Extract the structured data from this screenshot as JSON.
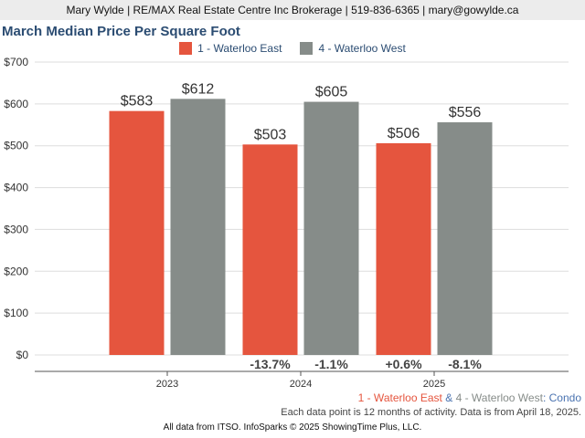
{
  "header": {
    "contact": "Mary Wylde | RE/MAX Real Estate Centre Inc Brokerage | 519-836-6365 | mary@gowylde.ca"
  },
  "colors": {
    "east": "#e5553e",
    "west": "#868c89",
    "title": "#2b4c72",
    "condo": "#4a73b0",
    "grid": "#dddddd"
  },
  "chart_data": {
    "type": "bar",
    "title": "March Median Price Per Square Foot",
    "categories": [
      "2023",
      "2024",
      "2025"
    ],
    "series": [
      {
        "name": "1 - Waterloo East",
        "values": [
          583,
          503,
          506
        ],
        "value_labels": [
          "$583",
          "$503",
          "$506"
        ],
        "change_labels": [
          "",
          "-13.7%",
          "+0.6%"
        ]
      },
      {
        "name": "4 - Waterloo West",
        "values": [
          612,
          605,
          556
        ],
        "value_labels": [
          "$612",
          "$605",
          "$556"
        ],
        "change_labels": [
          "",
          "-1.1%",
          "-8.1%"
        ]
      }
    ],
    "ylim": [
      0,
      700
    ],
    "yticks": [
      0,
      100,
      200,
      300,
      400,
      500,
      600,
      700
    ],
    "ytick_labels": [
      "$0",
      "$100",
      "$200",
      "$300",
      "$400",
      "$500",
      "$600",
      "$700"
    ],
    "grid": true,
    "legend": "top-center"
  },
  "subtitle": {
    "east": "1 - Waterloo East",
    "amp": "&",
    "west": "4 - Waterloo West",
    "colon": ":",
    "type": "Condo"
  },
  "note": "Each data point is 12 months of activity. Data is from April 18, 2025.",
  "footer": "All data from ITSO. InfoSparks © 2025 ShowingTime Plus, LLC."
}
